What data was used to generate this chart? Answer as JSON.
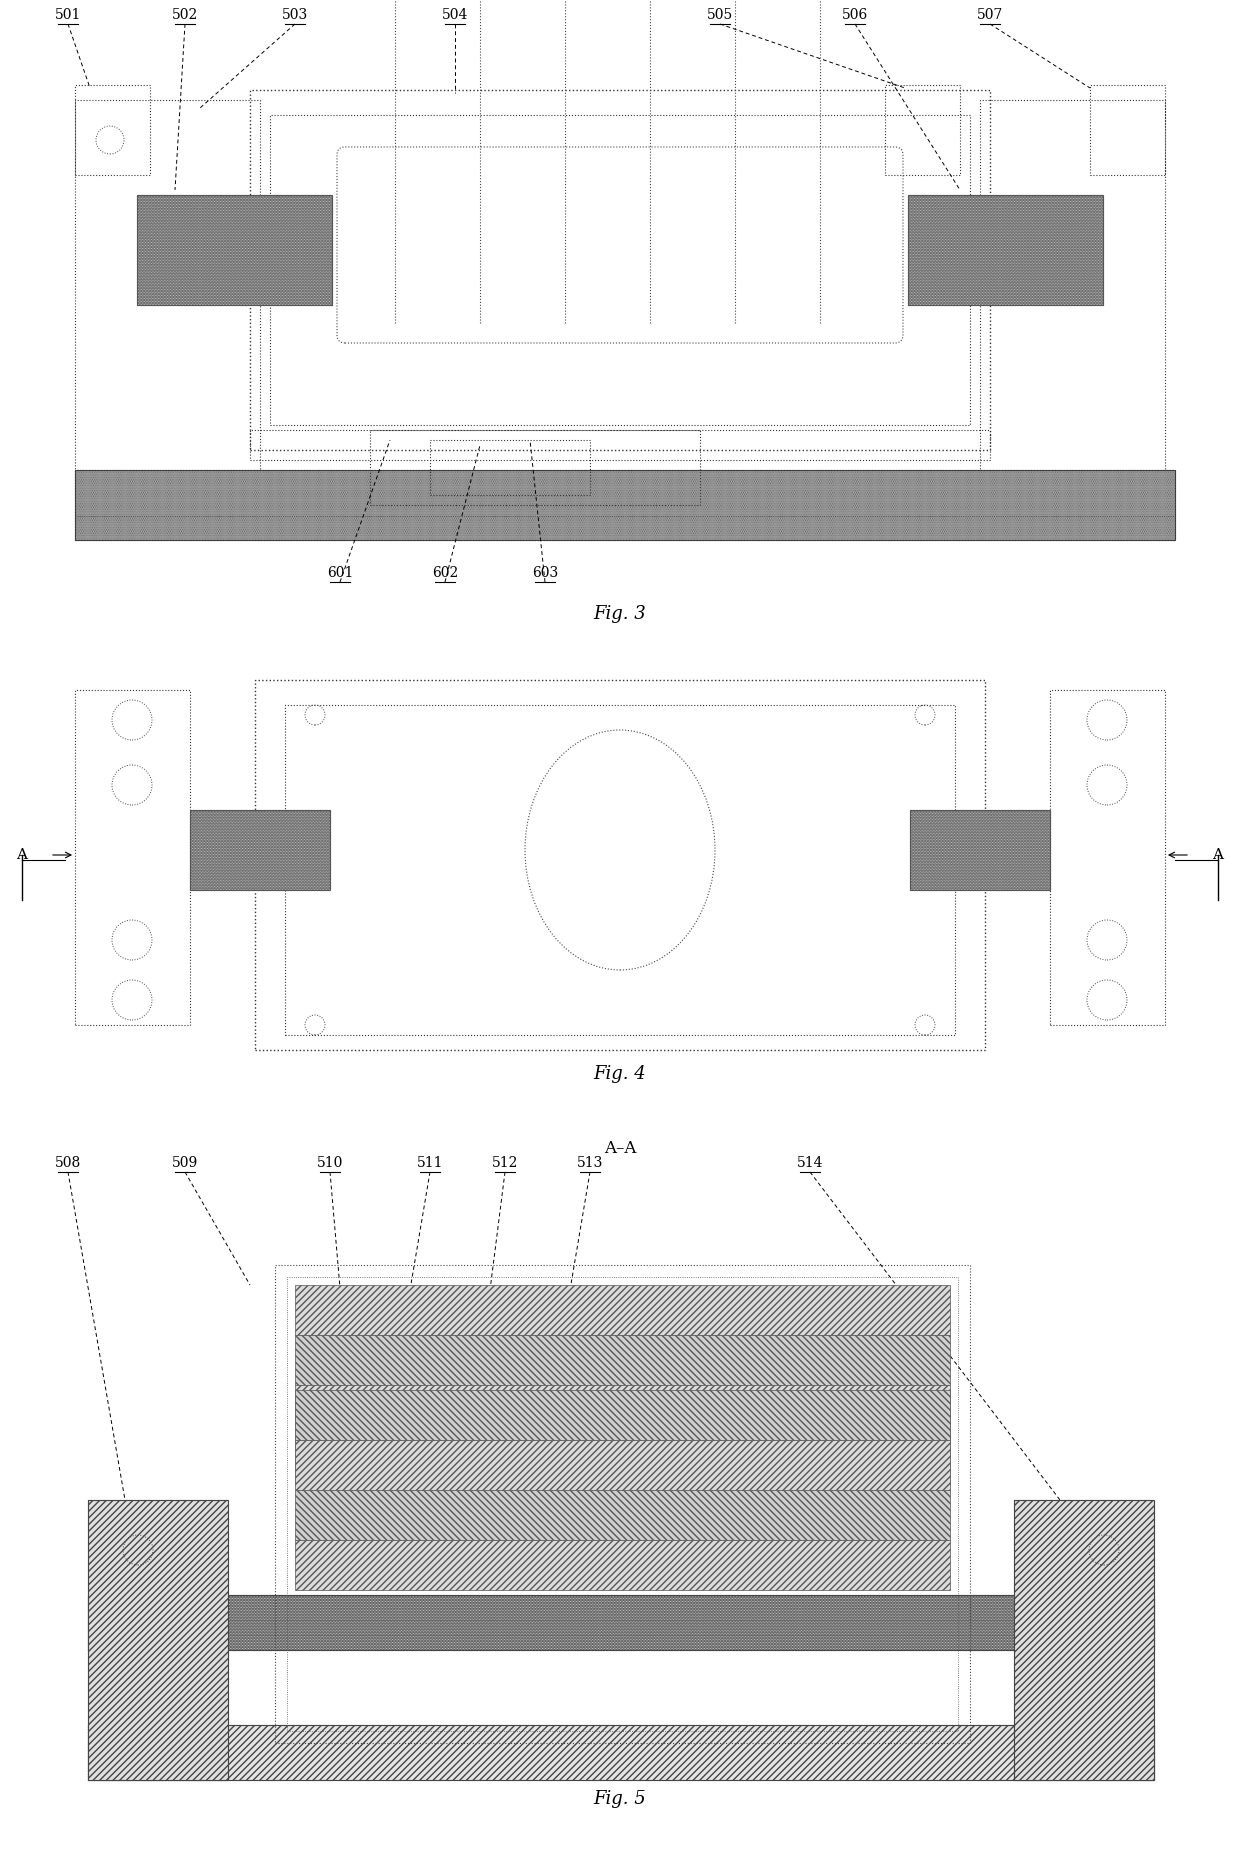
{
  "fig_width": 12.4,
  "fig_height": 18.62,
  "bg_color": "#ffffff",
  "fig3_title": "Fig. 3",
  "fig4_title": "Fig. 4",
  "fig5_title": "Fig. 5",
  "fig5_subtitle": "A–A",
  "label_fontsize": 10,
  "title_fontsize": 13
}
